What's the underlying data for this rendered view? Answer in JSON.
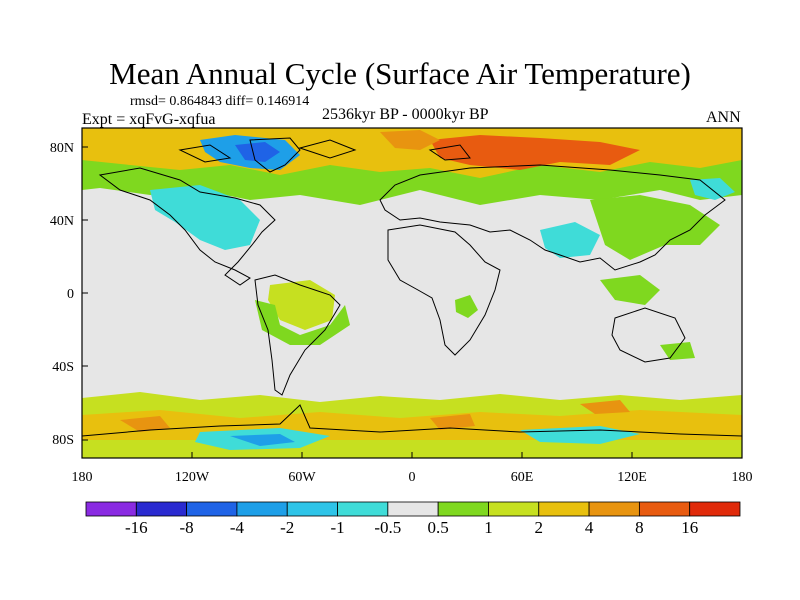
{
  "header": {
    "title": "Mean Annual Cycle (Surface Air Temperature)",
    "stats": "rmsd= 0.864843 diff= 0.146914",
    "experiment": "Expt = xqFvG-xqfua",
    "period": "2536kyr BP - 0000kyr BP",
    "season": "ANN"
  },
  "axes": {
    "lat_labels": [
      "80N",
      "40N",
      "0",
      "40S",
      "80S"
    ],
    "lon_labels": [
      "180",
      "120W",
      "60W",
      "0",
      "60E",
      "120E",
      "180"
    ]
  },
  "colorbar": {
    "labels": [
      "-16",
      "-8",
      "-4",
      "-2",
      "-1",
      "-0.5",
      "0.5",
      "1",
      "2",
      "4",
      "8",
      "16"
    ],
    "colors": [
      "#8a2be2",
      "#2a2ad0",
      "#1f63e6",
      "#1e9fe8",
      "#2ec4e8",
      "#3fdcd8",
      "#e6e6e6",
      "#7fd81f",
      "#c6e020",
      "#e8c00e",
      "#e89410",
      "#e85b10",
      "#e02a0a"
    ]
  },
  "map_regions": {
    "background_color": "#e6e6e6"
  }
}
